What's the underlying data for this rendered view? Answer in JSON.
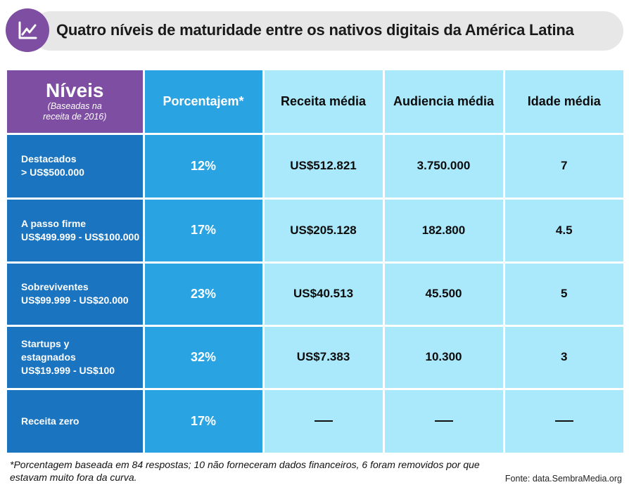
{
  "title": "Quatro níveis de maturidade entre os nativos digitais da América Latina",
  "icon": "chart-line-icon",
  "colors": {
    "purple": "#7d4ea1",
    "dark_blue": "#1b74bf",
    "mid_blue": "#2aa3e2",
    "light_blue": "#aae8fb"
  },
  "chart_data": {
    "type": "table",
    "header": {
      "levels_title": "Níveis",
      "levels_sub": "(Baseadas na receita de 2016)",
      "columns": [
        "Porcentajem*",
        "Receita média",
        "Audiencia média",
        "Idade média"
      ]
    },
    "rows": [
      {
        "level": "Destacados\n> US$500.000",
        "percent": "12%",
        "revenue": "US$512.821",
        "audience": "3.750.000",
        "age": "7"
      },
      {
        "level": "A passo firme\nUS$499.999 - US$100.000",
        "percent": "17%",
        "revenue": "US$205.128",
        "audience": "182.800",
        "age": "4.5"
      },
      {
        "level": "Sobreviventes\nUS$99.999 - US$20.000",
        "percent": "23%",
        "revenue": "US$40.513",
        "audience": "45.500",
        "age": "5"
      },
      {
        "level": "Startups y\nestagnados\nUS$19.999 - US$100",
        "percent": "32%",
        "revenue": "US$7.383",
        "audience": "10.300",
        "age": "3"
      },
      {
        "level": "Receita zero",
        "percent": "17%",
        "revenue": "—",
        "audience": "—",
        "age": "—"
      }
    ]
  },
  "footnote": "*Porcentagem baseada em 84 respostas; 10 não forneceram dados financeiros, 6 foram removidos por que estavam muito fora da curva.",
  "source": "Fonte: data.SembraMedia.org"
}
